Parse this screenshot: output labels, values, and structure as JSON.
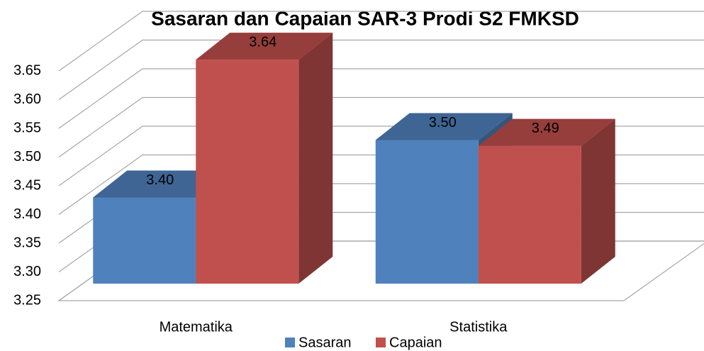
{
  "chart_data": {
    "type": "bar3d",
    "title": "Sasaran dan Capaian SAR-3 Prodi S2 FMKSD",
    "categories": [
      "Matematika",
      "Statistika"
    ],
    "series": [
      {
        "name": "Sasaran",
        "color": "#4f81bd",
        "values": [
          3.4,
          3.5
        ],
        "value_labels": [
          "3.40",
          "3.50"
        ]
      },
      {
        "name": "Capaian",
        "color": "#c0504d",
        "values": [
          3.64,
          3.49
        ],
        "value_labels": [
          "3.64",
          "3.49"
        ]
      }
    ],
    "ylim": [
      3.25,
      3.65
    ],
    "yticks": [
      3.25,
      {
        "value": 3.3,
        "label": "3.30"
      },
      3.35,
      {
        "value": 3.4,
        "label": "3.40"
      },
      3.45,
      {
        "value": 3.5,
        "label": "3.50"
      },
      3.55,
      {
        "value": 3.6,
        "label": "3.60"
      },
      3.65
    ],
    "grid": true,
    "legend": "bottom"
  }
}
